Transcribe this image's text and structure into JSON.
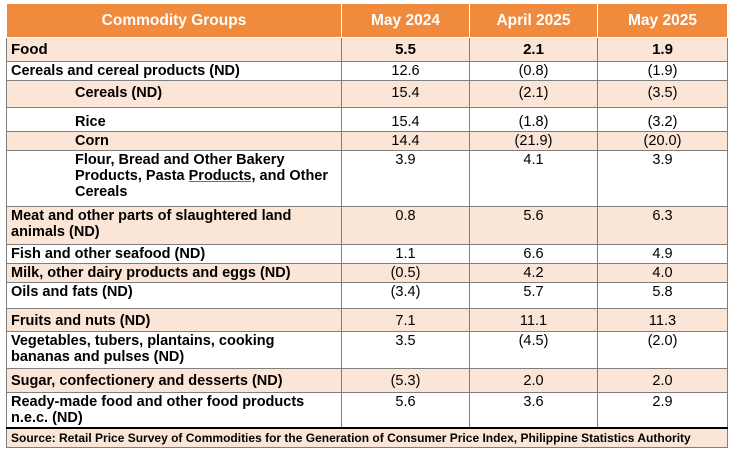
{
  "header": {
    "col_group": "Commodity Groups",
    "col_may2024": "May 2024",
    "col_apr2025": "April 2025",
    "col_may2025": "May 2025"
  },
  "colors": {
    "header_bg": "#f08a3c",
    "shade_row": "#fbe5d6"
  },
  "rows": [
    {
      "label": "Food",
      "may2024": "5.5",
      "apr2025": "2.1",
      "may2025": "1.9"
    },
    {
      "label": "Cereals and cereal products (ND)",
      "may2024": "12.6",
      "apr2025": "(0.8)",
      "may2025": "(1.9)"
    },
    {
      "label": "Cereals (ND)",
      "may2024": "15.4",
      "apr2025": "(2.1)",
      "may2025": "(3.5)"
    },
    {
      "label": "Rice",
      "may2024": "15.4",
      "apr2025": "(1.8)",
      "may2025": "(3.2)"
    },
    {
      "label": "Corn",
      "may2024": "14.4",
      "apr2025": "(21.9)",
      "may2025": "(20.0)"
    },
    {
      "label_part1": "Flour, Bread and Other Bakery Products, Pasta ",
      "label_part2": "Products,",
      "label_part3": "  and Other Cereals",
      "may2024": "3.9",
      "apr2025": "4.1",
      "may2025": "3.9"
    },
    {
      "label": "Meat and other parts of slaughtered land animals (ND)",
      "may2024": "0.8",
      "apr2025": "5.6",
      "may2025": "6.3"
    },
    {
      "label": "Fish and other seafood (ND)",
      "may2024": "1.1",
      "apr2025": "6.6",
      "may2025": "4.9"
    },
    {
      "label": "Milk, other dairy products and eggs (ND)",
      "may2024": "(0.5)",
      "apr2025": "4.2",
      "may2025": "4.0"
    },
    {
      "label": "Oils and fats (ND)",
      "may2024": "(3.4)",
      "apr2025": "5.7",
      "may2025": "5.8"
    },
    {
      "label": "Fruits and nuts (ND)",
      "may2024": "7.1",
      "apr2025": "11.1",
      "may2025": "11.3"
    },
    {
      "label": "Vegetables, tubers, plantains, cooking bananas and pulses (ND)",
      "may2024": "3.5",
      "apr2025": "(4.5)",
      "may2025": "(2.0)"
    },
    {
      "label": "Sugar, confectionery and desserts (ND)",
      "may2024": "(5.3)",
      "apr2025": "2.0",
      "may2025": "2.0"
    },
    {
      "label": "Ready-made food and other food products n.e.c. (ND)",
      "may2024": "5.6",
      "apr2025": "3.6",
      "may2025": "2.9"
    }
  ],
  "source": "Source: Retail Price Survey of Commodities for the Generation of Consumer Price Index, Philippine Statistics Authority"
}
